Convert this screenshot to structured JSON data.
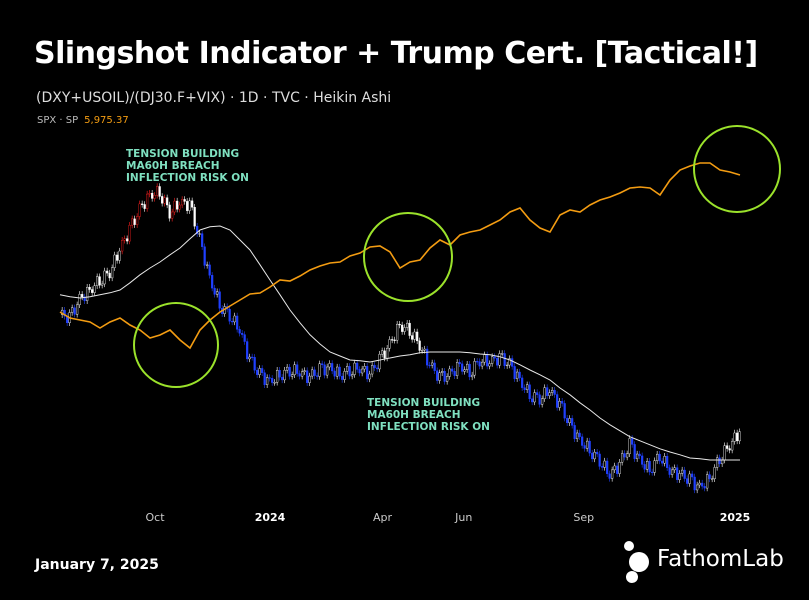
{
  "header": {
    "title": "Slingshot Indicator + Trump Cert. [Tactical!]",
    "subtitle": "(DXY+USOIL)/(DJ30.F+VIX) · 1D · TVC · Heikin Ashi",
    "spx_label": "SPX · SP",
    "spx_value": "5,975.37"
  },
  "annotations": [
    {
      "text": "TENSION BUILDING\nMA60H BREACH\nINFLECTION RISK ON"
    },
    {
      "text": "TENSION BUILDING\nMA60H BREACH\nINFLECTION RISK ON"
    }
  ],
  "footer": {
    "date": "January 7, 2025",
    "brand": "FathomLab"
  },
  "colors": {
    "spx": "#f39c12",
    "ma": "#e8e8e8",
    "up": "#ffffff",
    "hot": "#ff2020",
    "down": "#2040ff",
    "circle": "#9be22b",
    "annotation": "#7fe0c0"
  },
  "chart_data": {
    "type": "line",
    "title": "Slingshot Indicator + Trump Cert. [Tactical!]",
    "start_date": "2023-07-15",
    "step_days": 8,
    "x_ticks": [
      {
        "label": "Oct",
        "day": 76,
        "bold": false
      },
      {
        "label": "2024",
        "day": 168,
        "bold": true
      },
      {
        "label": "Apr",
        "day": 258,
        "bold": false
      },
      {
        "label": "Jun",
        "day": 323,
        "bold": false
      },
      {
        "label": "Sep",
        "day": 419,
        "bold": false
      },
      {
        "label": "2025",
        "day": 540,
        "bold": true
      }
    ],
    "series": [
      {
        "name": "(DXY+USOIL)/(DJ30.F+VIX) Heikin Ashi (indexed)",
        "style": "candles",
        "values": [
          51.3,
          50.5,
          55,
          57.5,
          60,
          62,
          67.5,
          72.5,
          77.5,
          81.3,
          82,
          77,
          79.3,
          78.8,
          70,
          60.5,
          53.8,
          51.3,
          47.5,
          40,
          36.3,
          34.5,
          36.3,
          37.5,
          37,
          35.5,
          37.5,
          38,
          36.3,
          37.5,
          38,
          36.3,
          40,
          43.8,
          48.8,
          47.5,
          43.8,
          38.8,
          35.5,
          36.3,
          38.8,
          37,
          40,
          39.5,
          40.5,
          38.8,
          35,
          31.3,
          30.5,
          32.5,
          28.8,
          23.8,
          20,
          17.5,
          15,
          11.3,
          13.8,
          18.8,
          15,
          12.5,
          16.3,
          12.5,
          11.3,
          10,
          8,
          10.5,
          15.5,
          18.8,
          22
        ]
      },
      {
        "name": "MA60",
        "style": "line",
        "values": [
          56.3,
          55.8,
          55.5,
          55.8,
          56.3,
          56.8,
          57.5,
          59.3,
          61.3,
          63,
          64.5,
          66.3,
          68,
          70.3,
          72.5,
          73.3,
          73.5,
          72.5,
          70,
          67.5,
          63.8,
          60,
          56.3,
          52.5,
          49.3,
          46.3,
          44,
          42,
          41,
          40,
          39.8,
          39.5,
          40,
          40.5,
          41,
          41.3,
          41.8,
          42,
          42,
          42,
          42,
          41.8,
          41.5,
          41.3,
          40.8,
          40,
          38.8,
          37.5,
          36.3,
          35,
          33,
          31.3,
          29.3,
          27.5,
          25.5,
          23.8,
          22.3,
          20.8,
          19.8,
          18.8,
          17.8,
          17,
          16.3,
          15.5,
          15.3,
          15,
          15,
          15,
          15
        ]
      },
      {
        "name": "SPX",
        "style": "line",
        "values": [
          4478,
          4413,
          4391,
          4369,
          4304,
          4369,
          4413,
          4337,
          4282,
          4195,
          4228,
          4282,
          4173,
          4086,
          4282,
          4391,
          4478,
          4544,
          4609,
          4674,
          4685,
          4751,
          4827,
          4816,
          4871,
          4936,
          4980,
          5012,
          5023,
          5089,
          5121,
          5187,
          5198,
          5132,
          4958,
          5023,
          5045,
          5176,
          5263,
          5209,
          5318,
          5350,
          5372,
          5427,
          5481,
          5568,
          5612,
          5481,
          5394,
          5350,
          5536,
          5590,
          5568,
          5645,
          5699,
          5732,
          5775,
          5830,
          5841,
          5830,
          5754,
          5917,
          6026,
          6070,
          6102,
          6102,
          6026,
          6004,
          5971
        ]
      }
    ]
  }
}
